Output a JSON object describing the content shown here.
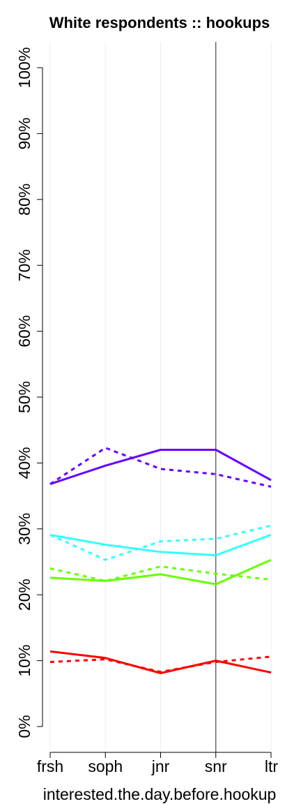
{
  "chart_data": {
    "type": "line",
    "title": "White respondents :: hookups",
    "xlabel": "interested.the.day.before.hookup",
    "ylabel": "",
    "categories": [
      "frsh",
      "soph",
      "jnr",
      "snr",
      "ltr"
    ],
    "ylim": [
      0,
      100
    ],
    "yticks": [
      0,
      10,
      20,
      30,
      40,
      50,
      60,
      70,
      80,
      90,
      100
    ],
    "ytick_labels": [
      "0%",
      "10%",
      "20%",
      "30%",
      "40%",
      "50%",
      "60%",
      "70%",
      "80%",
      "90%",
      "100%"
    ],
    "grid": "vertical",
    "highlight_category": "snr",
    "series": [
      {
        "color": "#6600ff",
        "dash": "solid",
        "values": [
          36.8,
          39.6,
          42.0,
          42.0,
          37.4
        ]
      },
      {
        "color": "#6600ff",
        "dash": "dashed",
        "values": [
          36.8,
          42.3,
          39.1,
          38.3,
          36.4
        ]
      },
      {
        "color": "#33ffff",
        "dash": "solid",
        "values": [
          29.1,
          27.6,
          26.5,
          26.0,
          29.1
        ]
      },
      {
        "color": "#33ffff",
        "dash": "dashed",
        "values": [
          29.1,
          25.3,
          28.1,
          28.5,
          30.5
        ]
      },
      {
        "color": "#66ff00",
        "dash": "solid",
        "values": [
          22.6,
          22.1,
          23.1,
          21.6,
          25.3
        ]
      },
      {
        "color": "#66ff00",
        "dash": "dashed",
        "values": [
          24.0,
          22.1,
          24.3,
          23.2,
          22.3
        ]
      },
      {
        "color": "#ff0000",
        "dash": "solid",
        "values": [
          11.4,
          10.4,
          8.1,
          10.0,
          8.2
        ]
      },
      {
        "color": "#ff0000",
        "dash": "dashed",
        "values": [
          9.8,
          10.2,
          8.3,
          9.8,
          10.6
        ]
      }
    ]
  }
}
